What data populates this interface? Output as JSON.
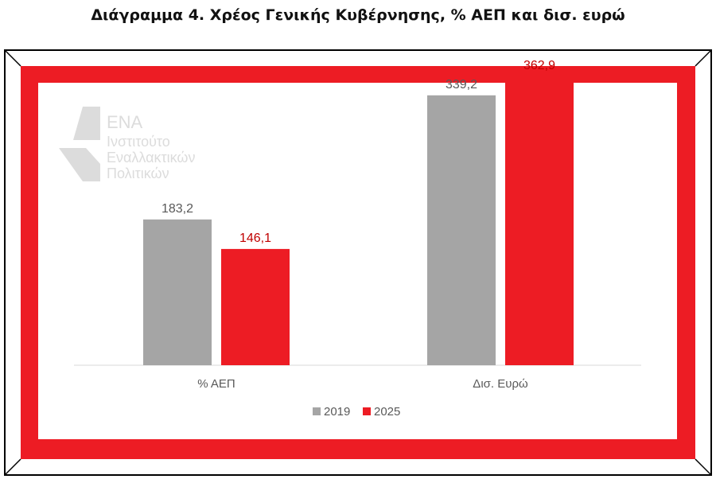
{
  "title": "Διάγραμμα 4. Χρέος Γενικής Κυβέρνησης, % ΑΕΠ και δισ. ευρώ",
  "logo": {
    "lines": [
      "ΕΝΑ",
      "Ινστιτούτο",
      "Εναλλακτικών",
      "Πολιτικών"
    ]
  },
  "colors": {
    "frame_red": "#ed1c24",
    "series_2019": "#a5a5a5",
    "series_2025": "#ed1c24",
    "label_2019": "#595959",
    "label_2025": "#c00000"
  },
  "chart_data": {
    "type": "bar",
    "categories": [
      "% ΑΕΠ",
      "Δισ. Ευρώ"
    ],
    "series": [
      {
        "name": "2019",
        "values": [
          183.2,
          339.2
        ],
        "labels": [
          "183,2",
          "339,2"
        ]
      },
      {
        "name": "2025",
        "values": [
          146.1,
          362.9
        ],
        "labels": [
          "146,1",
          "362,9"
        ]
      }
    ],
    "ylim": [
      0,
      400
    ],
    "grid": false,
    "legend": "bottom"
  }
}
